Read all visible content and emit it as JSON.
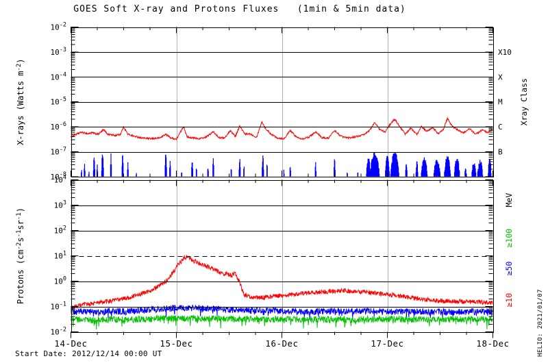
{
  "title": "GOES Soft X-ray and Protons Fluxes   (1min & 5min data)",
  "footer": {
    "start_date": "Start Date: 2012/12/14 00:00 UT"
  },
  "watermark": "HELIO: 2021/01/07",
  "colors": {
    "red": "#ff0000",
    "blue": "#0000ff",
    "green": "#00c400",
    "grid_gray": "#b0b0b0",
    "axis_black": "#000000",
    "background": "#ffffff"
  },
  "x_axis": {
    "tick_labels": [
      "14-Dec",
      "15-Dec",
      "16-Dec",
      "17-Dec",
      "18-Dec"
    ],
    "minor_tick_hours": 6,
    "start_label": "2012/12/14 00:00 UT",
    "span_days": 4
  },
  "chart_data": [
    {
      "panel": "xray",
      "type": "line",
      "title": "",
      "ylabel": "X-rays (Watts m^-2^)",
      "right_axis_title": "Xray Class",
      "ylim_exponents": [
        -2,
        -8
      ],
      "tick_exponents": [
        -2,
        -3,
        -4,
        -5,
        -6,
        -7,
        -8
      ],
      "solid_hlines_log": [
        -3,
        -4,
        -5,
        -6,
        -7
      ],
      "class_labels": [
        {
          "label": "X10",
          "log_y": -3
        },
        {
          "label": "X",
          "log_y": -4
        },
        {
          "label": "M",
          "log_y": -5
        },
        {
          "label": "C",
          "log_y": -6
        },
        {
          "label": "B",
          "log_y": -7
        }
      ],
      "series": [
        {
          "name": "xray-long-channel",
          "color_key": "red",
          "noise_dex": 0.035,
          "anchors_t_logflux": [
            [
              0,
              -6.4
            ],
            [
              0.05,
              -6.3
            ],
            [
              0.1,
              -6.22
            ],
            [
              0.16,
              -6.28
            ],
            [
              0.2,
              -6.24
            ],
            [
              0.26,
              -6.3
            ],
            [
              0.31,
              -6.12
            ],
            [
              0.35,
              -6.3
            ],
            [
              0.42,
              -6.35
            ],
            [
              0.47,
              -6.3
            ],
            [
              0.5,
              -6.0
            ],
            [
              0.54,
              -6.3
            ],
            [
              0.6,
              -6.38
            ],
            [
              0.68,
              -6.45
            ],
            [
              0.76,
              -6.48
            ],
            [
              0.84,
              -6.45
            ],
            [
              0.9,
              -6.3
            ],
            [
              0.95,
              -6.45
            ],
            [
              1.0,
              -6.5
            ],
            [
              1.07,
              -5.98
            ],
            [
              1.1,
              -6.4
            ],
            [
              1.16,
              -6.45
            ],
            [
              1.22,
              -6.48
            ],
            [
              1.28,
              -6.42
            ],
            [
              1.35,
              -6.2
            ],
            [
              1.4,
              -6.42
            ],
            [
              1.46,
              -6.45
            ],
            [
              1.51,
              -6.15
            ],
            [
              1.56,
              -6.38
            ],
            [
              1.6,
              -5.97
            ],
            [
              1.65,
              -6.3
            ],
            [
              1.7,
              -6.28
            ],
            [
              1.76,
              -6.42
            ],
            [
              1.81,
              -5.8
            ],
            [
              1.85,
              -6.1
            ],
            [
              1.9,
              -6.3
            ],
            [
              1.96,
              -6.45
            ],
            [
              2.02,
              -6.48
            ],
            [
              2.08,
              -6.15
            ],
            [
              2.14,
              -6.42
            ],
            [
              2.2,
              -6.48
            ],
            [
              2.26,
              -6.4
            ],
            [
              2.32,
              -6.2
            ],
            [
              2.38,
              -6.44
            ],
            [
              2.44,
              -6.46
            ],
            [
              2.5,
              -6.15
            ],
            [
              2.56,
              -6.38
            ],
            [
              2.62,
              -6.45
            ],
            [
              2.7,
              -6.4
            ],
            [
              2.78,
              -6.32
            ],
            [
              2.84,
              -6.1
            ],
            [
              2.88,
              -5.82
            ],
            [
              2.93,
              -6.12
            ],
            [
              2.98,
              -6.2
            ],
            [
              3.03,
              -5.88
            ],
            [
              3.07,
              -5.7
            ],
            [
              3.12,
              -6.0
            ],
            [
              3.17,
              -6.3
            ],
            [
              3.22,
              -6.05
            ],
            [
              3.28,
              -6.32
            ],
            [
              3.32,
              -5.98
            ],
            [
              3.37,
              -6.18
            ],
            [
              3.43,
              -6.02
            ],
            [
              3.48,
              -6.28
            ],
            [
              3.53,
              -6.12
            ],
            [
              3.57,
              -5.65
            ],
            [
              3.61,
              -5.95
            ],
            [
              3.66,
              -6.12
            ],
            [
              3.72,
              -6.25
            ],
            [
              3.78,
              -6.08
            ],
            [
              3.84,
              -6.3
            ],
            [
              3.9,
              -6.12
            ],
            [
              3.95,
              -6.25
            ],
            [
              4,
              -6.1
            ]
          ]
        },
        {
          "name": "xray-short-channel-spikes",
          "color_key": "blue",
          "baseline_log": -8,
          "spike_clusters_t_halfwidth_logpeak": [
            [
              0.1,
              0.004,
              -7.75
            ],
            [
              0.13,
              0.006,
              -7.5
            ],
            [
              0.17,
              0.004,
              -7.8
            ],
            [
              0.22,
              0.008,
              -7.25
            ],
            [
              0.25,
              0.005,
              -7.55
            ],
            [
              0.3,
              0.01,
              -7.15
            ],
            [
              0.38,
              0.006,
              -7.1
            ],
            [
              0.49,
              0.007,
              -7.08
            ],
            [
              0.54,
              0.005,
              -7.45
            ],
            [
              0.62,
              0.003,
              -7.8
            ],
            [
              0.9,
              0.008,
              -7.1
            ],
            [
              0.94,
              0.005,
              -7.4
            ],
            [
              1.05,
              0.004,
              -7.8
            ],
            [
              1.15,
              0.007,
              -7.35
            ],
            [
              1.19,
              0.004,
              -7.55
            ],
            [
              1.3,
              0.005,
              -7.6
            ],
            [
              1.35,
              0.006,
              -7.2
            ],
            [
              1.52,
              0.004,
              -7.6
            ],
            [
              1.6,
              0.007,
              -7.3
            ],
            [
              1.64,
              0.004,
              -7.55
            ],
            [
              1.82,
              0.008,
              -7.2
            ],
            [
              1.86,
              0.004,
              -7.5
            ],
            [
              2.02,
              0.004,
              -7.75
            ],
            [
              2.08,
              0.005,
              -7.55
            ],
            [
              2.32,
              0.006,
              -7.5
            ],
            [
              2.5,
              0.007,
              -7.35
            ],
            [
              2.62,
              0.004,
              -7.75
            ],
            [
              2.72,
              0.003,
              -7.85
            ],
            [
              2.82,
              0.02,
              -7.3
            ],
            [
              2.88,
              0.045,
              -7.1
            ],
            [
              3.0,
              0.02,
              -7.15
            ],
            [
              3.07,
              0.04,
              -7.05
            ],
            [
              3.18,
              0.008,
              -7.5
            ],
            [
              3.28,
              0.01,
              -7.45
            ],
            [
              3.35,
              0.03,
              -7.3
            ],
            [
              3.47,
              0.03,
              -7.35
            ],
            [
              3.57,
              0.03,
              -7.2
            ],
            [
              3.66,
              0.025,
              -7.3
            ],
            [
              3.74,
              0.006,
              -7.6
            ],
            [
              3.82,
              0.02,
              -7.45
            ],
            [
              3.88,
              0.025,
              -7.4
            ],
            [
              3.97,
              0.015,
              -7.3
            ]
          ]
        }
      ]
    },
    {
      "panel": "protons",
      "type": "line",
      "title": "",
      "ylabel": "Protons (cm^-2^s^-1^sr^-1^)",
      "right_axis_title": "MeV",
      "ylim_exponents": [
        4,
        -2
      ],
      "tick_exponents": [
        4,
        3,
        2,
        1,
        0,
        -1,
        -2
      ],
      "solid_hlines_log": [
        3,
        2,
        0,
        -1
      ],
      "dashed_hline_log": 1,
      "energy_labels": [
        {
          "label": "MeV",
          "color_key": "black",
          "log_y": 3.2
        },
        {
          "label": "≥100",
          "color_key": "green",
          "log_y": 1.7
        },
        {
          "label": "≥50",
          "color_key": "blue",
          "log_y": 0.5
        },
        {
          "label": "≥10",
          "color_key": "red",
          "log_y": -0.75
        }
      ],
      "series": [
        {
          "name": "protons-ge10MeV",
          "color_key": "red",
          "noise_dex": 0.09,
          "anchors_t_logflux": [
            [
              0,
              -1.05
            ],
            [
              0.08,
              -0.97
            ],
            [
              0.16,
              -0.9
            ],
            [
              0.25,
              -0.86
            ],
            [
              0.35,
              -0.8
            ],
            [
              0.45,
              -0.73
            ],
            [
              0.55,
              -0.65
            ],
            [
              0.65,
              -0.52
            ],
            [
              0.75,
              -0.38
            ],
            [
              0.82,
              -0.24
            ],
            [
              0.88,
              -0.08
            ],
            [
              0.93,
              0.14
            ],
            [
              0.98,
              0.42
            ],
            [
              1.03,
              0.72
            ],
            [
              1.08,
              0.93
            ],
            [
              1.11,
              0.95
            ],
            [
              1.15,
              0.83
            ],
            [
              1.2,
              0.73
            ],
            [
              1.27,
              0.61
            ],
            [
              1.34,
              0.49
            ],
            [
              1.41,
              0.36
            ],
            [
              1.47,
              0.28
            ],
            [
              1.52,
              0.22
            ],
            [
              1.56,
              0.3
            ],
            [
              1.6,
              -0.05
            ],
            [
              1.64,
              -0.52
            ],
            [
              1.7,
              -0.63
            ],
            [
              1.78,
              -0.66
            ],
            [
              1.88,
              -0.62
            ],
            [
              1.98,
              -0.57
            ],
            [
              2.1,
              -0.52
            ],
            [
              2.2,
              -0.48
            ],
            [
              2.3,
              -0.45
            ],
            [
              2.4,
              -0.42
            ],
            [
              2.5,
              -0.4
            ],
            [
              2.6,
              -0.38
            ],
            [
              2.7,
              -0.4
            ],
            [
              2.8,
              -0.43
            ],
            [
              2.9,
              -0.47
            ],
            [
              3.0,
              -0.52
            ],
            [
              3.1,
              -0.58
            ],
            [
              3.2,
              -0.65
            ],
            [
              3.35,
              -0.72
            ],
            [
              3.5,
              -0.78
            ],
            [
              3.65,
              -0.8
            ],
            [
              3.8,
              -0.82
            ],
            [
              4,
              -0.85
            ]
          ]
        },
        {
          "name": "protons-ge50MeV",
          "color_key": "blue",
          "noise_dex": 0.13,
          "anchors_t_logflux": [
            [
              0,
              -1.2
            ],
            [
              0.4,
              -1.2
            ],
            [
              0.7,
              -1.15
            ],
            [
              0.9,
              -1.08
            ],
            [
              1.1,
              -1.05
            ],
            [
              1.3,
              -1.08
            ],
            [
              1.5,
              -1.13
            ],
            [
              1.8,
              -1.18
            ],
            [
              2.2,
              -1.2
            ],
            [
              2.6,
              -1.18
            ],
            [
              3.0,
              -1.2
            ],
            [
              3.5,
              -1.21
            ],
            [
              4,
              -1.2
            ]
          ]
        },
        {
          "name": "protons-ge100MeV",
          "color_key": "green",
          "noise_dex": 0.13,
          "anchors_t_logflux": [
            [
              0,
              -1.52
            ],
            [
              0.5,
              -1.52
            ],
            [
              0.9,
              -1.47
            ],
            [
              1.2,
              -1.47
            ],
            [
              1.5,
              -1.5
            ],
            [
              2.0,
              -1.5
            ],
            [
              2.5,
              -1.52
            ],
            [
              3.0,
              -1.5
            ],
            [
              3.5,
              -1.51
            ],
            [
              4,
              -1.5
            ]
          ]
        }
      ]
    }
  ]
}
